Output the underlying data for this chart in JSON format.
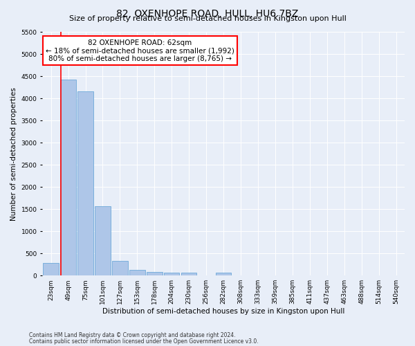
{
  "title": "82, OXENHOPE ROAD, HULL, HU6 7BZ",
  "subtitle": "Size of property relative to semi-detached houses in Kingston upon Hull",
  "xlabel": "Distribution of semi-detached houses by size in Kingston upon Hull",
  "ylabel": "Number of semi-detached properties",
  "footnote1": "Contains HM Land Registry data © Crown copyright and database right 2024.",
  "footnote2": "Contains public sector information licensed under the Open Government Licence v3.0.",
  "bin_labels": [
    "23sqm",
    "49sqm",
    "75sqm",
    "101sqm",
    "127sqm",
    "153sqm",
    "178sqm",
    "204sqm",
    "230sqm",
    "256sqm",
    "282sqm",
    "308sqm",
    "333sqm",
    "359sqm",
    "385sqm",
    "411sqm",
    "437sqm",
    "463sqm",
    "488sqm",
    "514sqm",
    "540sqm"
  ],
  "bar_values": [
    280,
    4430,
    4160,
    1560,
    325,
    125,
    80,
    65,
    65,
    0,
    65,
    0,
    0,
    0,
    0,
    0,
    0,
    0,
    0,
    0,
    0
  ],
  "bar_color": "#aec6e8",
  "bar_edge_color": "#5a9fd4",
  "vline_color": "red",
  "vline_x_index": 1.5,
  "property_label": "82 OXENHOPE ROAD: 62sqm",
  "smaller_pct": 18,
  "smaller_n": "1,992",
  "larger_pct": 80,
  "larger_n": "8,765",
  "ylim": [
    0,
    5500
  ],
  "yticks": [
    0,
    500,
    1000,
    1500,
    2000,
    2500,
    3000,
    3500,
    4000,
    4500,
    5000,
    5500
  ],
  "background_color": "#e8eef8",
  "axes_bg_color": "#e8eef8",
  "grid_color": "#ffffff",
  "title_fontsize": 10,
  "subtitle_fontsize": 8,
  "axis_label_fontsize": 7.5,
  "tick_fontsize": 6.5,
  "annotation_fontsize": 7.5
}
